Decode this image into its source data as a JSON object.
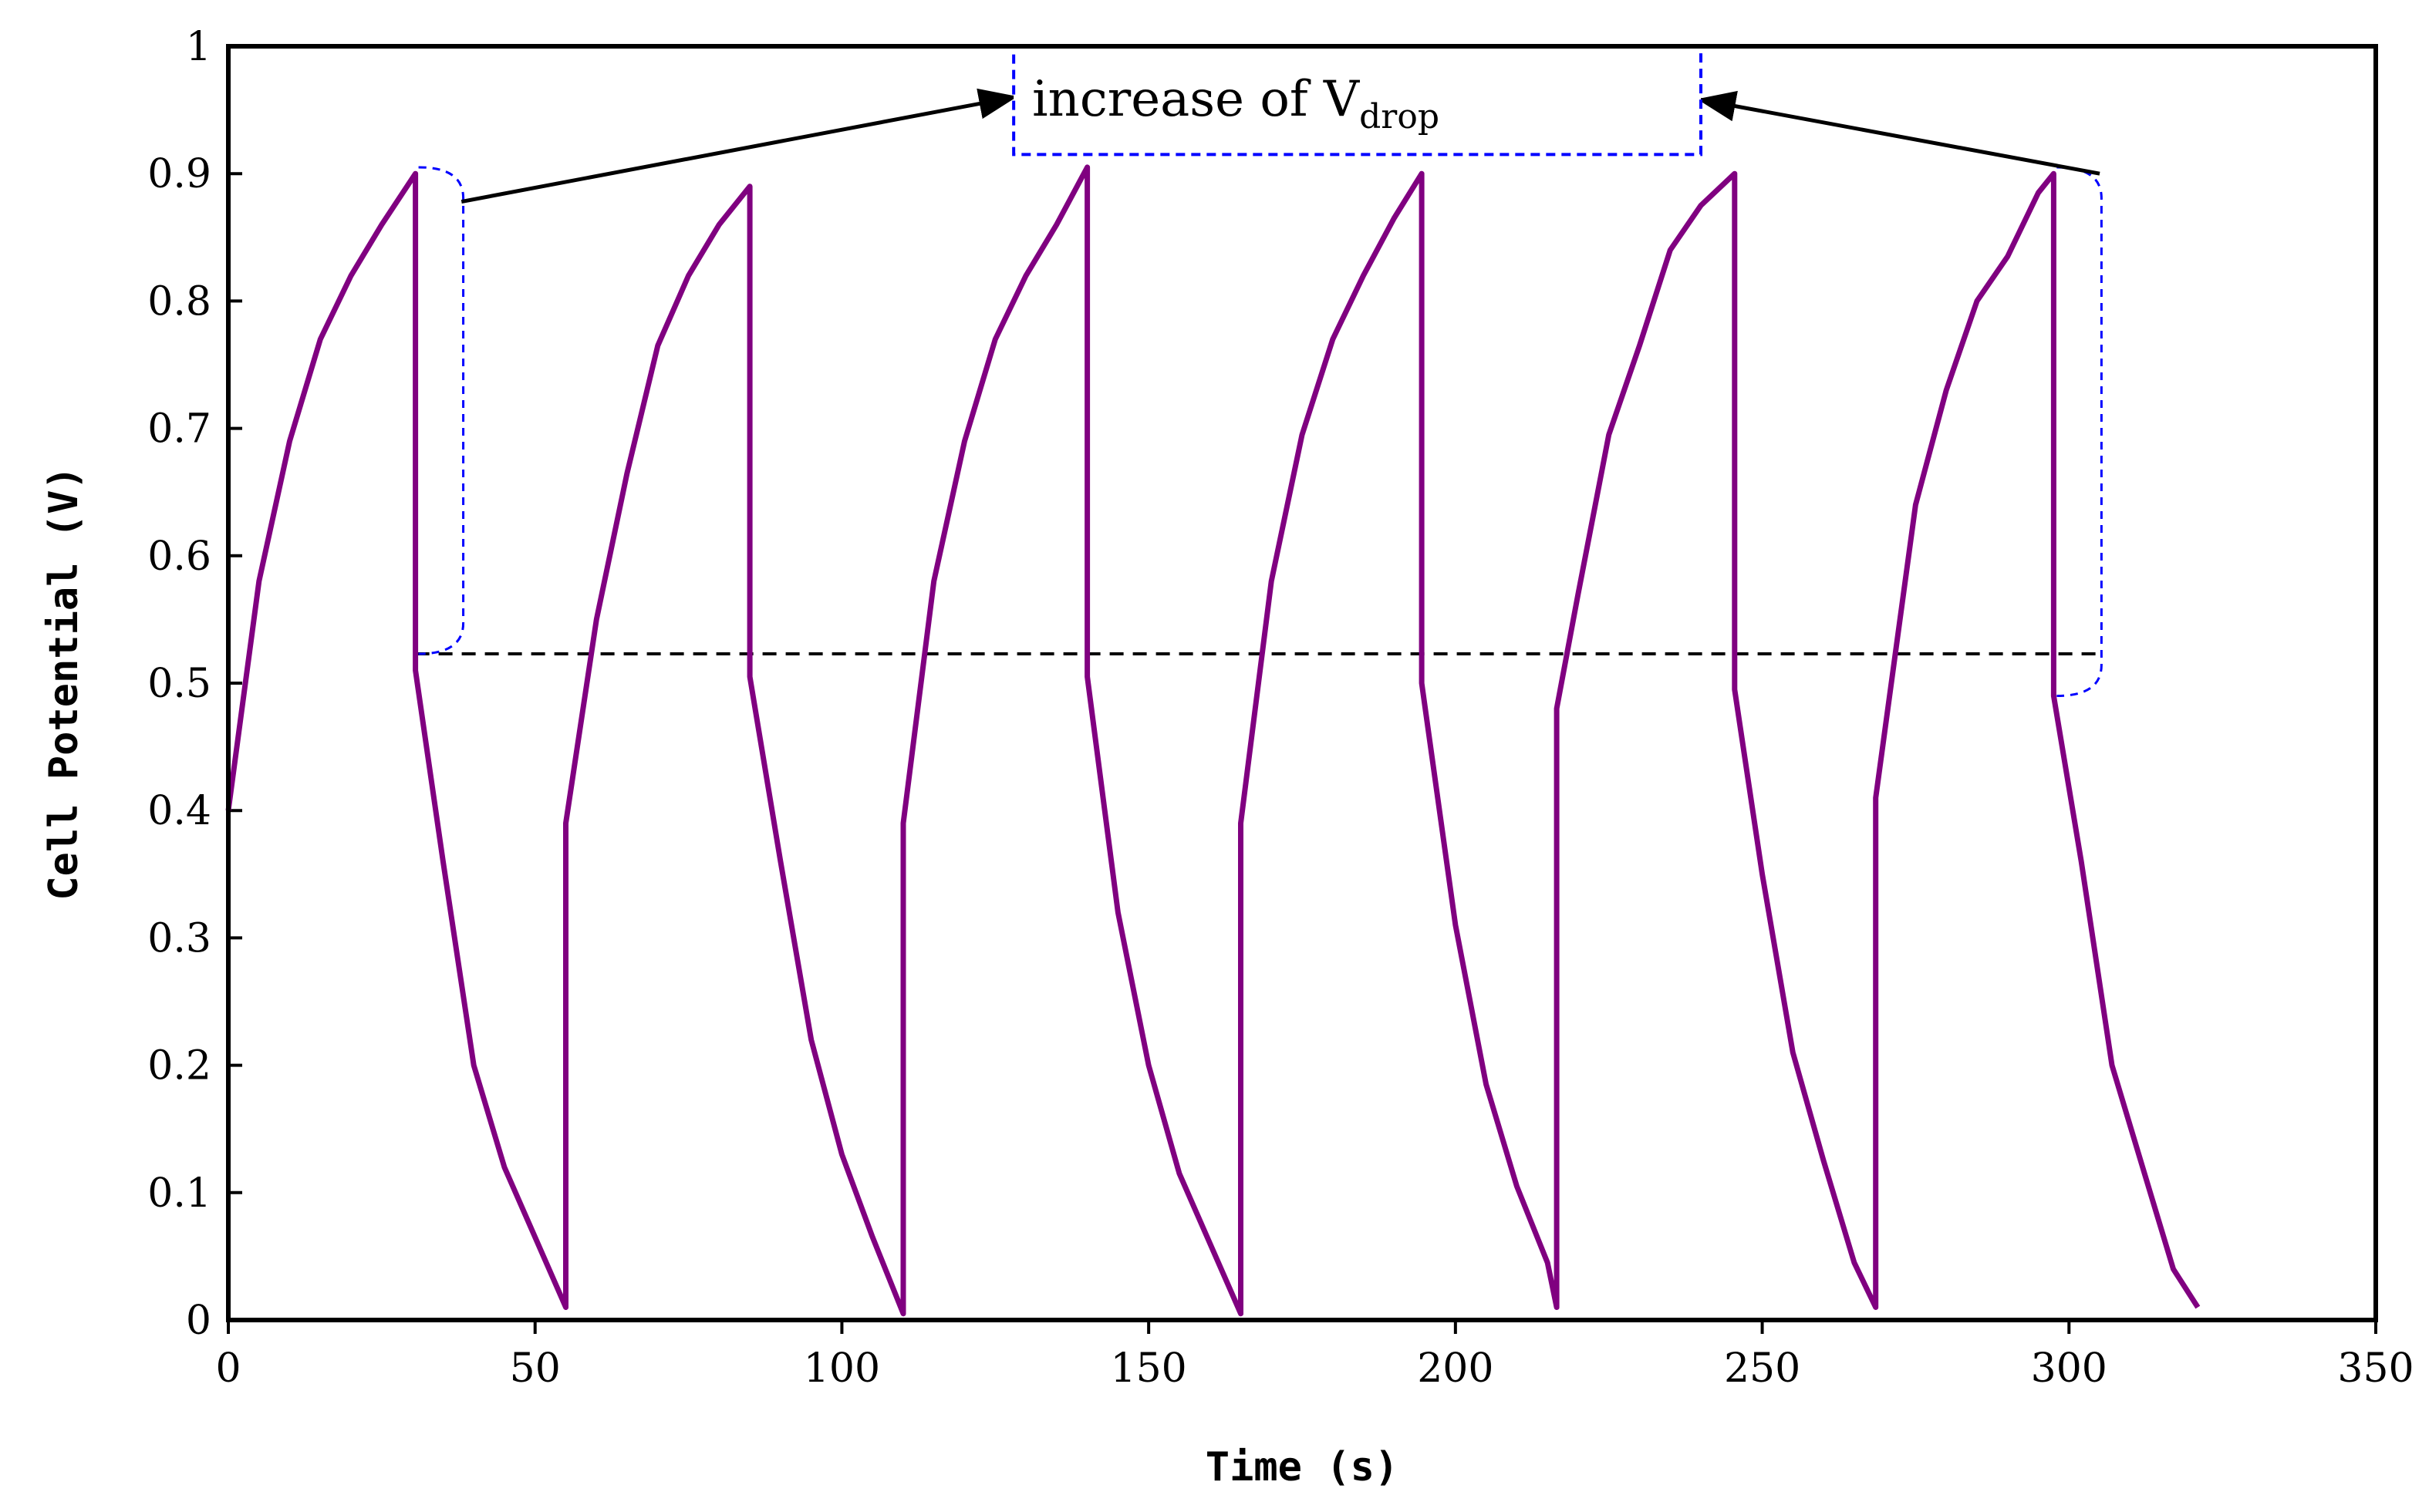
{
  "chart_data": {
    "type": "line",
    "title": "",
    "xlabel": "Time (s)",
    "ylabel": "Cell Potential (V)",
    "xlim": [
      0,
      350
    ],
    "ylim": [
      0,
      1
    ],
    "xticks": [
      0,
      50,
      100,
      150,
      200,
      250,
      300,
      350
    ],
    "xtick_labels": [
      "0",
      "50",
      "100",
      "150",
      "200",
      "250",
      "300",
      "350"
    ],
    "yticks": [
      0,
      0.1,
      0.2,
      0.3,
      0.4,
      0.5,
      0.6,
      0.7,
      0.8,
      0.9,
      1
    ],
    "ytick_labels": [
      "0",
      "0.1",
      "0.2",
      "0.3",
      "0.4",
      "0.5",
      "0.6",
      "0.7",
      "0.8",
      "0.9",
      "1"
    ],
    "grid": false,
    "series": [
      {
        "name": "cell potential",
        "color": "#800080",
        "x": [
          0,
          5,
          10,
          15,
          20,
          25,
          30.5,
          30.5,
          35,
          40,
          45,
          50,
          55,
          55,
          60,
          65,
          70,
          75,
          80,
          85,
          85,
          90,
          95,
          100,
          105,
          110,
          110,
          115,
          120,
          125,
          130,
          135,
          140,
          140,
          145,
          150,
          155,
          160,
          165,
          165,
          170,
          175,
          180,
          185,
          190,
          194.5,
          194.5,
          200,
          205,
          210,
          215,
          216.5,
          216.5,
          220,
          225,
          230,
          235,
          240,
          245.5,
          245.5,
          250,
          255,
          260,
          265,
          268.5,
          268.5,
          275,
          280,
          285,
          290,
          295,
          297.5,
          297.5,
          302,
          307,
          312,
          317,
          321
        ],
        "y": [
          0.4,
          0.58,
          0.69,
          0.77,
          0.82,
          0.86,
          0.9,
          0.51,
          0.36,
          0.2,
          0.12,
          0.065,
          0.01,
          0.39,
          0.55,
          0.665,
          0.765,
          0.82,
          0.86,
          0.89,
          0.505,
          0.36,
          0.22,
          0.13,
          0.065,
          0.005,
          0.39,
          0.58,
          0.69,
          0.77,
          0.82,
          0.86,
          0.905,
          0.505,
          0.32,
          0.2,
          0.115,
          0.06,
          0.005,
          0.39,
          0.58,
          0.695,
          0.77,
          0.82,
          0.865,
          0.9,
          0.5,
          0.31,
          0.185,
          0.105,
          0.045,
          0.01,
          0.48,
          0.57,
          0.695,
          0.765,
          0.84,
          0.875,
          0.9,
          0.495,
          0.35,
          0.21,
          0.125,
          0.045,
          0.01,
          0.41,
          0.64,
          0.73,
          0.8,
          0.835,
          0.885,
          0.9,
          0.49,
          0.36,
          0.2,
          0.12,
          0.04,
          0.01
        ]
      }
    ],
    "reference_lines": [
      {
        "type": "hline",
        "y": 0.523,
        "x_from": 30.5,
        "x_to": 305,
        "style": "dashed",
        "color": "#000000"
      }
    ],
    "annotations": [
      {
        "text": "increase of V",
        "subscript": "drop",
        "box": {
          "x": [
            128,
            240
          ],
          "y": [
            0.915,
            1.0
          ]
        },
        "box_color": "#0000ff"
      },
      {
        "type": "bracket",
        "x": 31,
        "y_top": 0.905,
        "y_bottom": 0.523,
        "color": "#0000ff"
      },
      {
        "type": "bracket",
        "x": 298,
        "y_top": 0.905,
        "y_bottom": 0.49,
        "color": "#0000ff"
      },
      {
        "type": "arrow",
        "from": {
          "x": 38,
          "y": 0.878
        },
        "to": {
          "x": 128,
          "y": 0.96
        }
      },
      {
        "type": "arrow",
        "from": {
          "x": 305,
          "y": 0.9
        },
        "to": {
          "x": 240,
          "y": 0.958
        }
      }
    ]
  }
}
